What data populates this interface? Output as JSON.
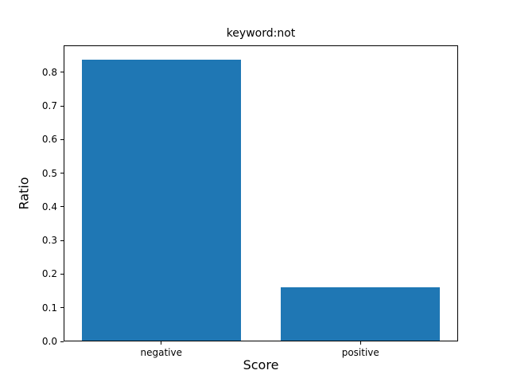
{
  "chart_data": {
    "type": "bar",
    "title": "keyword:not",
    "xlabel": "Score",
    "ylabel": "Ratio",
    "categories": [
      "negative",
      "positive"
    ],
    "values": [
      0.84,
      0.16
    ],
    "ylim": [
      0,
      0.88
    ],
    "xlim": [
      -0.49,
      1.49
    ],
    "yticks": [
      0.0,
      0.1,
      0.2,
      0.3,
      0.4,
      0.5,
      0.6,
      0.7,
      0.8
    ],
    "ytick_labels": [
      "0.0",
      "0.1",
      "0.2",
      "0.3",
      "0.4",
      "0.5",
      "0.6",
      "0.7",
      "0.8"
    ],
    "bar_width_fraction": 0.8,
    "bar_color": "#1f77b4",
    "axis_color": "#000000",
    "background_color": "#ffffff",
    "grid": false,
    "legend": null
  }
}
